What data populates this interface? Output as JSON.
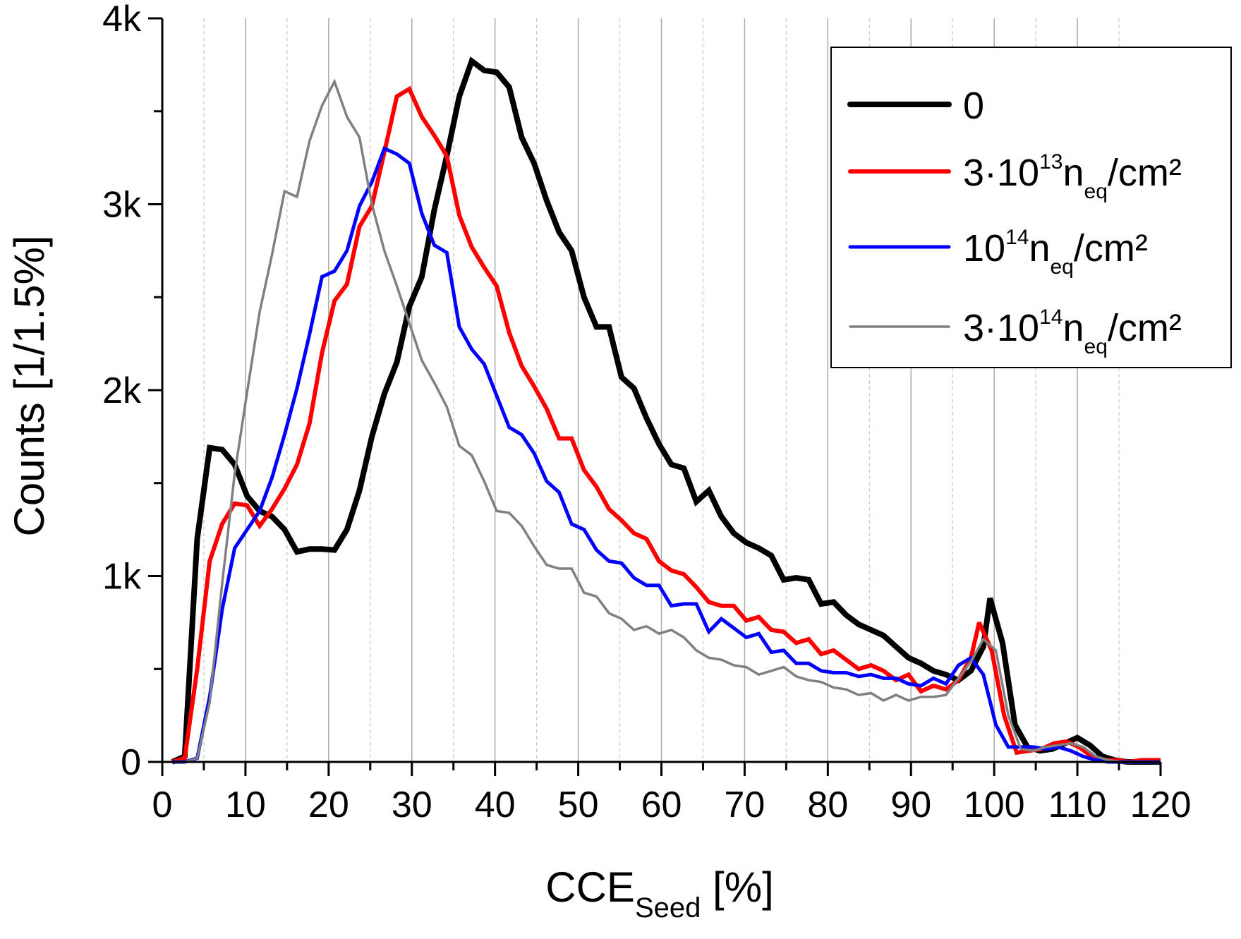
{
  "chart_data": {
    "type": "line",
    "title": "",
    "xlabel": {
      "main": "CCE",
      "sub": "Seed",
      "suffix": " [%]"
    },
    "ylabel": "Counts [1/1.5%]",
    "xlim": [
      0,
      120
    ],
    "ylim": [
      0,
      4000
    ],
    "x_ticks": [
      0,
      10,
      20,
      30,
      40,
      50,
      60,
      70,
      80,
      90,
      100,
      110,
      120
    ],
    "x_tick_labels": [
      "0",
      "10",
      "20",
      "30",
      "40",
      "50",
      "60",
      "70",
      "80",
      "90",
      "100",
      "110",
      "120"
    ],
    "y_ticks": [
      0,
      1000,
      2000,
      3000,
      4000
    ],
    "y_tick_labels": [
      "0",
      "1k",
      "2k",
      "3k",
      "4k"
    ],
    "grid": {
      "x_major": true,
      "x_minor": true,
      "y": false
    },
    "legend_position": "top-right",
    "series": [
      {
        "name": "0",
        "legend": {
          "main": "0",
          "sup": "",
          "sub": "",
          "tail": ""
        },
        "color": "#000000",
        "width": 8,
        "x": [
          1.2,
          2.7,
          4.2,
          5.7,
          7.2,
          8.7,
          10.2,
          11.7,
          13.2,
          14.7,
          16.2,
          17.7,
          19.2,
          20.7,
          22.2,
          23.7,
          25.2,
          26.7,
          28.2,
          29.7,
          31.2,
          32.7,
          34.2,
          35.7,
          37.2,
          38.7,
          40.2,
          41.7,
          43.2,
          44.7,
          46.2,
          47.7,
          49.2,
          50.7,
          52.2,
          53.7,
          55.2,
          56.7,
          58.2,
          59.7,
          61.2,
          62.7,
          64.2,
          65.7,
          67.2,
          68.7,
          70.2,
          71.7,
          73.2,
          74.7,
          76.2,
          77.7,
          79.2,
          80.7,
          82.2,
          83.7,
          85.2,
          86.7,
          88.2,
          89.7,
          91.2,
          92.7,
          94.2,
          95.7,
          97.2,
          98.7,
          99.5,
          101.0,
          102.5,
          104.0,
          105.5,
          107.0,
          108.5,
          110.0,
          111.5,
          113.0,
          114.5,
          116.0,
          117.5,
          119.0,
          120.0
        ],
        "y": [
          0,
          30,
          1200,
          1690,
          1680,
          1600,
          1430,
          1350,
          1320,
          1250,
          1130,
          1145,
          1145,
          1140,
          1250,
          1460,
          1750,
          1980,
          2150,
          2450,
          2610,
          2970,
          3260,
          3580,
          3770,
          3720,
          3710,
          3630,
          3360,
          3220,
          3020,
          2850,
          2750,
          2500,
          2340,
          2340,
          2070,
          2010,
          1850,
          1710,
          1600,
          1580,
          1400,
          1460,
          1320,
          1230,
          1180,
          1150,
          1110,
          980,
          990,
          980,
          850,
          860,
          790,
          740,
          710,
          680,
          620,
          560,
          530,
          490,
          470,
          440,
          490,
          620,
          880,
          640,
          200,
          80,
          60,
          70,
          100,
          130,
          90,
          30,
          10,
          0,
          0,
          0,
          0
        ]
      },
      {
        "name": "3·10¹³ n_eq/cm²",
        "legend": {
          "main": "3·10",
          "sup": "13",
          "sub": "eq",
          "tail": "/cm²",
          "n": "n"
        },
        "color": "#ff0000",
        "width": 6,
        "x": [
          1.2,
          2.7,
          4.2,
          5.7,
          7.2,
          8.7,
          10.2,
          11.7,
          13.2,
          14.7,
          16.2,
          17.7,
          19.2,
          20.7,
          22.2,
          23.7,
          25.2,
          26.7,
          28.2,
          29.7,
          31.2,
          32.7,
          34.2,
          35.7,
          37.2,
          38.7,
          40.2,
          41.7,
          43.2,
          44.7,
          46.2,
          47.7,
          49.2,
          50.7,
          52.2,
          53.7,
          55.2,
          56.7,
          58.2,
          59.7,
          61.2,
          62.7,
          64.2,
          65.7,
          67.2,
          68.7,
          70.2,
          71.7,
          73.2,
          74.7,
          76.2,
          77.7,
          79.2,
          80.7,
          82.2,
          83.7,
          85.2,
          86.7,
          88.2,
          89.7,
          91.2,
          92.7,
          94.2,
          95.7,
          97.2,
          98.2,
          99.7,
          101.2,
          102.7,
          104.2,
          105.7,
          107.2,
          108.7,
          110.2,
          111.7,
          113.2,
          114.7,
          116.2,
          117.7,
          119.2,
          120.0
        ],
        "y": [
          0,
          20,
          500,
          1080,
          1280,
          1390,
          1380,
          1270,
          1360,
          1470,
          1600,
          1820,
          2200,
          2480,
          2570,
          2880,
          2990,
          3280,
          3580,
          3620,
          3470,
          3370,
          3260,
          2940,
          2770,
          2660,
          2560,
          2310,
          2130,
          2020,
          1900,
          1740,
          1740,
          1570,
          1480,
          1360,
          1300,
          1230,
          1200,
          1080,
          1030,
          1010,
          940,
          860,
          840,
          840,
          760,
          780,
          710,
          700,
          640,
          660,
          580,
          600,
          550,
          500,
          520,
          490,
          440,
          470,
          380,
          410,
          390,
          440,
          560,
          750,
          600,
          250,
          50,
          60,
          70,
          100,
          110,
          80,
          30,
          10,
          10,
          0,
          10,
          10,
          10
        ]
      },
      {
        "name": "10¹⁴ n_eq/cm²",
        "legend": {
          "main": "10",
          "sup": "14",
          "sub": "eq",
          "tail": "/cm²",
          "n": "n"
        },
        "color": "#0000ff",
        "width": 5,
        "x": [
          1.2,
          2.7,
          4.2,
          5.7,
          7.2,
          8.7,
          10.2,
          11.7,
          13.2,
          14.7,
          16.2,
          17.7,
          19.2,
          20.7,
          22.2,
          23.7,
          25.2,
          26.7,
          28.2,
          29.7,
          31.2,
          32.7,
          34.2,
          35.7,
          37.2,
          38.7,
          40.2,
          41.7,
          43.2,
          44.7,
          46.2,
          47.7,
          49.2,
          50.7,
          52.2,
          53.7,
          55.2,
          56.7,
          58.2,
          59.7,
          61.2,
          62.7,
          64.2,
          65.7,
          67.2,
          68.7,
          70.2,
          71.7,
          73.2,
          74.7,
          76.2,
          77.7,
          79.2,
          80.7,
          82.2,
          83.7,
          85.2,
          86.7,
          88.2,
          89.7,
          91.2,
          92.7,
          94.2,
          95.7,
          97.2,
          98.7,
          100.2,
          101.7,
          103.2,
          104.7,
          106.2,
          107.7,
          109.2,
          110.7,
          112.2,
          113.7,
          115.2,
          116.7,
          118.2,
          119.7,
          120.0
        ],
        "y": [
          0,
          0,
          20,
          350,
          820,
          1150,
          1250,
          1350,
          1530,
          1760,
          2010,
          2300,
          2610,
          2640,
          2750,
          2990,
          3120,
          3300,
          3270,
          3220,
          2950,
          2780,
          2740,
          2340,
          2220,
          2140,
          1970,
          1800,
          1760,
          1660,
          1510,
          1450,
          1280,
          1250,
          1140,
          1080,
          1070,
          990,
          950,
          950,
          840,
          850,
          850,
          700,
          770,
          720,
          670,
          690,
          590,
          600,
          530,
          530,
          490,
          480,
          480,
          460,
          470,
          450,
          450,
          420,
          410,
          450,
          420,
          520,
          560,
          470,
          200,
          80,
          80,
          80,
          70,
          80,
          60,
          30,
          10,
          0,
          0,
          0,
          0,
          0,
          0
        ]
      },
      {
        "name": "3·10¹⁴ n_eq/cm²",
        "legend": {
          "main": "3·10",
          "sup": "14",
          "sub": "eq",
          "tail": "/cm²",
          "n": "n"
        },
        "color": "#808080",
        "width": 3.5,
        "x": [
          1.2,
          2.7,
          4.2,
          5.7,
          7.2,
          8.7,
          10.2,
          11.7,
          13.2,
          14.7,
          16.2,
          17.7,
          19.2,
          20.7,
          22.2,
          23.7,
          25.2,
          26.7,
          28.2,
          29.7,
          31.2,
          32.7,
          34.2,
          35.7,
          37.2,
          38.7,
          40.2,
          41.7,
          43.2,
          44.7,
          46.2,
          47.7,
          49.2,
          50.7,
          52.2,
          53.7,
          55.2,
          56.7,
          58.2,
          59.7,
          61.2,
          62.7,
          64.2,
          65.7,
          67.2,
          68.7,
          70.2,
          71.7,
          73.2,
          74.7,
          76.2,
          77.7,
          79.2,
          80.7,
          82.2,
          83.7,
          85.2,
          86.7,
          88.2,
          89.7,
          91.2,
          92.7,
          94.2,
          95.7,
          97.2,
          98.7,
          100.2,
          101.7,
          103.2,
          104.7,
          106.2,
          107.7,
          109.2,
          110.7,
          112.2,
          113.7,
          115.2,
          116.7,
          118.2,
          119.7,
          120.0
        ],
        "y": [
          0,
          0,
          20,
          320,
          960,
          1550,
          1990,
          2420,
          2730,
          3070,
          3040,
          3340,
          3530,
          3660,
          3470,
          3360,
          3000,
          2750,
          2560,
          2360,
          2160,
          2040,
          1910,
          1700,
          1650,
          1510,
          1350,
          1340,
          1270,
          1160,
          1060,
          1040,
          1040,
          910,
          890,
          800,
          770,
          710,
          730,
          690,
          710,
          670,
          600,
          560,
          550,
          520,
          510,
          470,
          490,
          510,
          460,
          440,
          430,
          400,
          390,
          360,
          370,
          330,
          360,
          330,
          350,
          350,
          360,
          450,
          540,
          660,
          600,
          250,
          70,
          60,
          80,
          90,
          100,
          80,
          30,
          10,
          0,
          0,
          0,
          0,
          0
        ]
      }
    ]
  }
}
